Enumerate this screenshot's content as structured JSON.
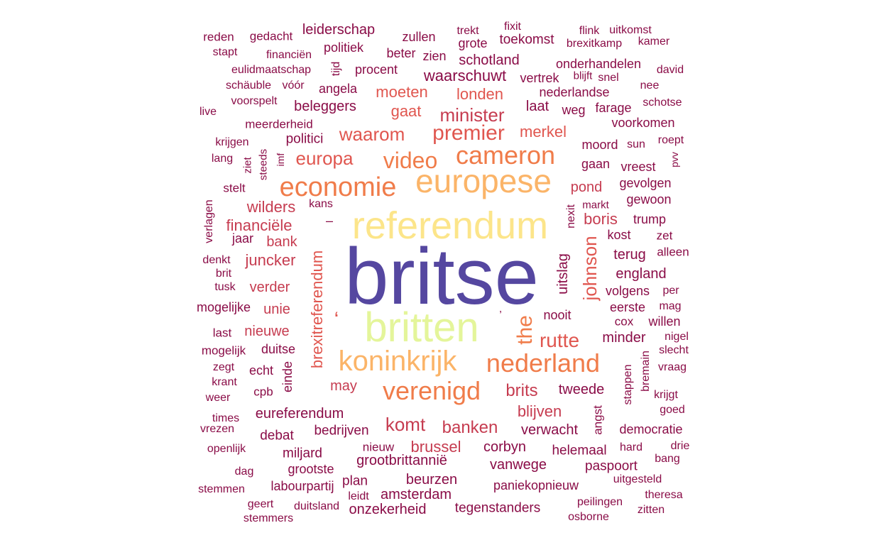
{
  "palette": {
    "indigo": "#5547a0",
    "yellow": "#fce58a",
    "lime": "#e4f59a",
    "peach": "#fbb468",
    "orange": "#f07c4a",
    "coral": "#e0564f",
    "red": "#c63c50",
    "crimson": "#a61d4d",
    "maroon": "#8a0c47"
  },
  "words": [
    {
      "t": "britse",
      "c": "indigo"
    },
    {
      "t": "referendum",
      "c": "yellow"
    },
    {
      "t": "britten",
      "c": "lime"
    },
    {
      "t": "europese",
      "c": "peach"
    },
    {
      "t": "cameron",
      "c": "orange"
    },
    {
      "t": "economie",
      "c": "orange"
    },
    {
      "t": "koninkrijk",
      "c": "peach"
    },
    {
      "t": "nederland",
      "c": "orange"
    },
    {
      "t": "verenigd",
      "c": "orange"
    },
    {
      "t": "video",
      "c": "orange"
    },
    {
      "t": "the",
      "c": "orange"
    },
    {
      "t": "brexitreferendum",
      "c": "coral"
    },
    {
      "t": "johnson",
      "c": "coral"
    },
    {
      "t": "premier",
      "c": "coral"
    },
    {
      "t": "waarom",
      "c": "coral"
    },
    {
      "t": "europa",
      "c": "coral"
    },
    {
      "t": "rutte",
      "c": "coral"
    },
    {
      "t": "komt",
      "c": "red"
    },
    {
      "t": "banken",
      "c": "red"
    },
    {
      "t": "brits",
      "c": "red"
    },
    {
      "t": "minister",
      "c": "red"
    },
    {
      "t": "moeten",
      "c": "coral"
    },
    {
      "t": "londen",
      "c": "coral"
    },
    {
      "t": "gaat",
      "c": "coral"
    },
    {
      "t": "merkel",
      "c": "coral"
    },
    {
      "t": "wilders",
      "c": "red"
    },
    {
      "t": "financiële",
      "c": "red"
    },
    {
      "t": "bank",
      "c": "red"
    },
    {
      "t": "juncker",
      "c": "red"
    },
    {
      "t": "verder",
      "c": "red"
    },
    {
      "t": "unie",
      "c": "red"
    },
    {
      "t": "nieuwe",
      "c": "red"
    },
    {
      "t": "may",
      "c": "red"
    },
    {
      "t": "blijven",
      "c": "red"
    },
    {
      "t": "brussel",
      "c": "red"
    },
    {
      "t": "boris",
      "c": "red"
    },
    {
      "t": "pond",
      "c": "red"
    },
    {
      "t": "leiderschap",
      "c": "maroon"
    },
    {
      "t": "politiek",
      "c": "maroon"
    },
    {
      "t": "gedacht",
      "c": "maroon"
    },
    {
      "t": "reden",
      "c": "maroon"
    },
    {
      "t": "stapt",
      "c": "maroon"
    },
    {
      "t": "financiën",
      "c": "maroon"
    },
    {
      "t": "eulidmaatschap",
      "c": "maroon"
    },
    {
      "t": "tijd",
      "c": "maroon"
    },
    {
      "t": "procent",
      "c": "maroon"
    },
    {
      "t": "schäuble",
      "c": "maroon"
    },
    {
      "t": "vóór",
      "c": "maroon"
    },
    {
      "t": "angela",
      "c": "maroon"
    },
    {
      "t": "live",
      "c": "maroon"
    },
    {
      "t": "voorspelt",
      "c": "maroon"
    },
    {
      "t": "beleggers",
      "c": "maroon"
    },
    {
      "t": "meerderheid",
      "c": "maroon"
    },
    {
      "t": "politici",
      "c": "maroon"
    },
    {
      "t": "krijgen",
      "c": "maroon"
    },
    {
      "t": "lang",
      "c": "maroon"
    },
    {
      "t": "ziet",
      "c": "maroon"
    },
    {
      "t": "steeds",
      "c": "maroon"
    },
    {
      "t": "imf",
      "c": "maroon"
    },
    {
      "t": "stelt",
      "c": "maroon"
    },
    {
      "t": "verlagen",
      "c": "maroon"
    },
    {
      "t": "kans",
      "c": "maroon"
    },
    {
      "t": "jaar",
      "c": "maroon"
    },
    {
      "t": "denkt",
      "c": "maroon"
    },
    {
      "t": "brit",
      "c": "maroon"
    },
    {
      "t": "tusk",
      "c": "maroon"
    },
    {
      "t": "mogelijke",
      "c": "maroon"
    },
    {
      "t": "last",
      "c": "maroon"
    },
    {
      "t": "mogelijk",
      "c": "maroon"
    },
    {
      "t": "duitse",
      "c": "maroon"
    },
    {
      "t": "zegt",
      "c": "maroon"
    },
    {
      "t": "echt",
      "c": "maroon"
    },
    {
      "t": "einde",
      "c": "maroon"
    },
    {
      "t": "krant",
      "c": "maroon"
    },
    {
      "t": "cpb",
      "c": "maroon"
    },
    {
      "t": "weer",
      "c": "maroon"
    },
    {
      "t": "times",
      "c": "maroon"
    },
    {
      "t": "eureferendum",
      "c": "maroon"
    },
    {
      "t": "vrezen",
      "c": "maroon"
    },
    {
      "t": "debat",
      "c": "maroon"
    },
    {
      "t": "bedrijven",
      "c": "maroon"
    },
    {
      "t": "openlijk",
      "c": "maroon"
    },
    {
      "t": "miljard",
      "c": "maroon"
    },
    {
      "t": "dag",
      "c": "maroon"
    },
    {
      "t": "grootste",
      "c": "maroon"
    },
    {
      "t": "stemmen",
      "c": "maroon"
    },
    {
      "t": "labourpartij",
      "c": "maroon"
    },
    {
      "t": "geert",
      "c": "maroon"
    },
    {
      "t": "duitsland",
      "c": "maroon"
    },
    {
      "t": "stemmers",
      "c": "maroon"
    },
    {
      "t": "zullen",
      "c": "maroon"
    },
    {
      "t": "trekt",
      "c": "maroon"
    },
    {
      "t": "fixit",
      "c": "maroon"
    },
    {
      "t": "grote",
      "c": "maroon"
    },
    {
      "t": "toekomst",
      "c": "maroon"
    },
    {
      "t": "beter",
      "c": "maroon"
    },
    {
      "t": "zien",
      "c": "maroon"
    },
    {
      "t": "schotland",
      "c": "maroon"
    },
    {
      "t": "waarschuwt",
      "c": "maroon"
    },
    {
      "t": "vertrek",
      "c": "maroon"
    },
    {
      "t": "flink",
      "c": "maroon"
    },
    {
      "t": "uitkomst",
      "c": "maroon"
    },
    {
      "t": "brexitkamp",
      "c": "maroon"
    },
    {
      "t": "kamer",
      "c": "maroon"
    },
    {
      "t": "onderhandelen",
      "c": "maroon"
    },
    {
      "t": "david",
      "c": "maroon"
    },
    {
      "t": "blijft",
      "c": "maroon"
    },
    {
      "t": "snel",
      "c": "maroon"
    },
    {
      "t": "nederlandse",
      "c": "maroon"
    },
    {
      "t": "nee",
      "c": "maroon"
    },
    {
      "t": "laat",
      "c": "maroon"
    },
    {
      "t": "weg",
      "c": "maroon"
    },
    {
      "t": "farage",
      "c": "maroon"
    },
    {
      "t": "schotse",
      "c": "maroon"
    },
    {
      "t": "voorkomen",
      "c": "maroon"
    },
    {
      "t": "moord",
      "c": "maroon"
    },
    {
      "t": "sun",
      "c": "maroon"
    },
    {
      "t": "roept",
      "c": "maroon"
    },
    {
      "t": "pvv",
      "c": "maroon"
    },
    {
      "t": "gaan",
      "c": "maroon"
    },
    {
      "t": "vreest",
      "c": "maroon"
    },
    {
      "t": "gevolgen",
      "c": "maroon"
    },
    {
      "t": "gewoon",
      "c": "maroon"
    },
    {
      "t": "markt",
      "c": "maroon"
    },
    {
      "t": "nexit",
      "c": "maroon"
    },
    {
      "t": "trump",
      "c": "maroon"
    },
    {
      "t": "kost",
      "c": "maroon"
    },
    {
      "t": "zet",
      "c": "maroon"
    },
    {
      "t": "terug",
      "c": "maroon"
    },
    {
      "t": "alleen",
      "c": "maroon"
    },
    {
      "t": "uitslag",
      "c": "maroon"
    },
    {
      "t": "england",
      "c": "maroon"
    },
    {
      "t": "volgens",
      "c": "maroon"
    },
    {
      "t": "per",
      "c": "maroon"
    },
    {
      "t": "eerste",
      "c": "maroon"
    },
    {
      "t": "mag",
      "c": "maroon"
    },
    {
      "t": "nooit",
      "c": "maroon"
    },
    {
      "t": "cox",
      "c": "maroon"
    },
    {
      "t": "willen",
      "c": "maroon"
    },
    {
      "t": "minder",
      "c": "maroon"
    },
    {
      "t": "nigel",
      "c": "maroon"
    },
    {
      "t": "bremain",
      "c": "maroon"
    },
    {
      "t": "slecht",
      "c": "maroon"
    },
    {
      "t": "vraag",
      "c": "maroon"
    },
    {
      "t": "stappen",
      "c": "maroon"
    },
    {
      "t": "tweede",
      "c": "maroon"
    },
    {
      "t": "krijgt",
      "c": "maroon"
    },
    {
      "t": "angst",
      "c": "maroon"
    },
    {
      "t": "goed",
      "c": "maroon"
    },
    {
      "t": "verwacht",
      "c": "maroon"
    },
    {
      "t": "democratie",
      "c": "maroon"
    },
    {
      "t": "corbyn",
      "c": "maroon"
    },
    {
      "t": "helemaal",
      "c": "maroon"
    },
    {
      "t": "hard",
      "c": "maroon"
    },
    {
      "t": "drie",
      "c": "maroon"
    },
    {
      "t": "nieuw",
      "c": "maroon"
    },
    {
      "t": "grootbrittannië",
      "c": "maroon"
    },
    {
      "t": "vanwege",
      "c": "maroon"
    },
    {
      "t": "paspoort",
      "c": "maroon"
    },
    {
      "t": "bang",
      "c": "maroon"
    },
    {
      "t": "beurzen",
      "c": "maroon"
    },
    {
      "t": "plan",
      "c": "maroon"
    },
    {
      "t": "paniekopnieuw",
      "c": "maroon"
    },
    {
      "t": "uitgesteld",
      "c": "maroon"
    },
    {
      "t": "amsterdam",
      "c": "maroon"
    },
    {
      "t": "leidt",
      "c": "maroon"
    },
    {
      "t": "theresa",
      "c": "maroon"
    },
    {
      "t": "onzekerheid",
      "c": "maroon"
    },
    {
      "t": "tegenstanders",
      "c": "maroon"
    },
    {
      "t": "peilingen",
      "c": "maroon"
    },
    {
      "t": "zitten",
      "c": "maroon"
    },
    {
      "t": "osborne",
      "c": "maroon"
    },
    {
      "t": "‘",
      "c": "coral"
    },
    {
      "t": "’",
      "c": "maroon"
    },
    {
      "t": "–",
      "c": "maroon"
    }
  ]
}
